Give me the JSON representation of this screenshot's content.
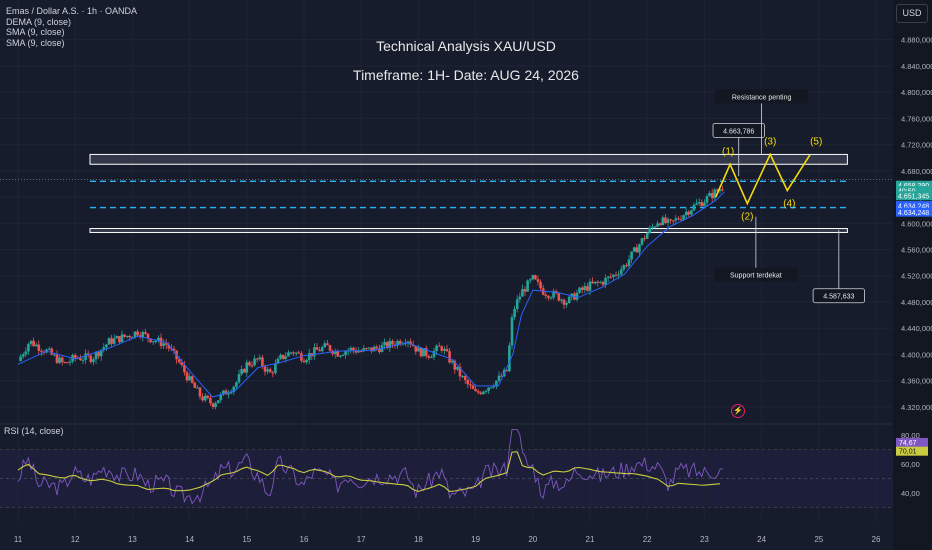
{
  "header": {
    "symbol_line": "Emas / Dollar A.S. · 1h · OANDA",
    "indicators": [
      "DEMA (9, close)",
      "SMA (9, close)",
      "SMA (9, close)"
    ]
  },
  "titles": {
    "line1": "Technical Analysis XAU/USD",
    "line2": "Timeframe: 1H- Date: AUG 24, 2026"
  },
  "unit_label": "USD",
  "rsi_label": "RSI (14, close)",
  "colors": {
    "background": "#161c2c",
    "up_candle": "#26a69a",
    "down_candle": "#ef5350",
    "ma_line": "#2962ff",
    "rsi_line": "#7e57c2",
    "rsi_ma": "#c9cc3f",
    "wave": "#f5d90a",
    "dashed_level": "#29b6f6"
  },
  "chart_data": {
    "type": "candlestick",
    "price_axis": {
      "ticks": [
        "4.880,000",
        "4.840,000",
        "4.800,000",
        "4.760,000",
        "4.720,000",
        "4.680,000",
        "4.640,000",
        "4.600,000",
        "4.560,000",
        "4.520,000",
        "4.480,000",
        "4.440,000",
        "4.400,000",
        "4.360,000",
        "4.320,000"
      ],
      "range": [
        4300,
        4910
      ]
    },
    "time_axis": {
      "ticks": [
        "11",
        "12",
        "13",
        "14",
        "15",
        "16",
        "17",
        "18",
        "19",
        "20",
        "21",
        "22",
        "23",
        "24",
        "25",
        "26"
      ]
    },
    "price_path": [
      [
        11,
        4390
      ],
      [
        11.2,
        4420
      ],
      [
        11.5,
        4405
      ],
      [
        11.8,
        4385
      ],
      [
        12.0,
        4395
      ],
      [
        12.3,
        4395
      ],
      [
        12.6,
        4420
      ],
      [
        12.9,
        4428
      ],
      [
        13.1,
        4435
      ],
      [
        13.3,
        4425
      ],
      [
        13.6,
        4415
      ],
      [
        13.8,
        4390
      ],
      [
        14.0,
        4360
      ],
      [
        14.2,
        4335
      ],
      [
        14.4,
        4325
      ],
      [
        14.6,
        4340
      ],
      [
        14.8,
        4355
      ],
      [
        15.0,
        4385
      ],
      [
        15.2,
        4392
      ],
      [
        15.4,
        4370
      ],
      [
        15.6,
        4395
      ],
      [
        15.8,
        4405
      ],
      [
        16.0,
        4395
      ],
      [
        16.2,
        4405
      ],
      [
        16.4,
        4412
      ],
      [
        16.6,
        4402
      ],
      [
        16.8,
        4408
      ],
      [
        17.0,
        4405
      ],
      [
        17.2,
        4408
      ],
      [
        17.4,
        4412
      ],
      [
        17.6,
        4418
      ],
      [
        17.8,
        4425
      ],
      [
        18.0,
        4405
      ],
      [
        18.2,
        4400
      ],
      [
        18.4,
        4412
      ],
      [
        18.6,
        4385
      ],
      [
        18.8,
        4360
      ],
      [
        19.0,
        4340
      ],
      [
        19.2,
        4350
      ],
      [
        19.4,
        4362
      ],
      [
        19.55,
        4375
      ],
      [
        19.65,
        4465
      ],
      [
        19.8,
        4495
      ],
      [
        20.0,
        4515
      ],
      [
        20.2,
        4495
      ],
      [
        20.4,
        4490
      ],
      [
        20.6,
        4480
      ],
      [
        20.8,
        4495
      ],
      [
        21.0,
        4505
      ],
      [
        21.2,
        4510
      ],
      [
        21.4,
        4520
      ],
      [
        21.6,
        4535
      ],
      [
        21.8,
        4560
      ],
      [
        22.0,
        4585
      ],
      [
        22.2,
        4605
      ],
      [
        22.4,
        4598
      ],
      [
        22.6,
        4612
      ],
      [
        22.8,
        4625
      ],
      [
        23.0,
        4635
      ],
      [
        23.2,
        4648
      ],
      [
        23.35,
        4658
      ]
    ],
    "ma_path": [
      [
        11,
        4385
      ],
      [
        11.5,
        4405
      ],
      [
        12.0,
        4393
      ],
      [
        12.6,
        4410
      ],
      [
        13.1,
        4428
      ],
      [
        13.6,
        4418
      ],
      [
        14.0,
        4375
      ],
      [
        14.4,
        4335
      ],
      [
        14.8,
        4345
      ],
      [
        15.2,
        4380
      ],
      [
        15.6,
        4388
      ],
      [
        16.0,
        4398
      ],
      [
        16.6,
        4405
      ],
      [
        17.2,
        4406
      ],
      [
        17.8,
        4418
      ],
      [
        18.2,
        4405
      ],
      [
        18.6,
        4392
      ],
      [
        19.0,
        4352
      ],
      [
        19.4,
        4352
      ],
      [
        19.65,
        4400
      ],
      [
        19.8,
        4460
      ],
      [
        20.0,
        4498
      ],
      [
        20.4,
        4495
      ],
      [
        20.8,
        4487
      ],
      [
        21.2,
        4502
      ],
      [
        21.6,
        4522
      ],
      [
        22.0,
        4565
      ],
      [
        22.4,
        4595
      ],
      [
        22.8,
        4612
      ],
      [
        23.2,
        4635
      ],
      [
        23.35,
        4648
      ]
    ],
    "levels": {
      "resistance_zone": [
        4690,
        4705
      ],
      "support_zone": [
        4586,
        4592
      ],
      "dashed_upper": 4664,
      "dashed_lower": 4624,
      "dotted_current": 4667
    },
    "price_labels": [
      {
        "text": "4.658,290",
        "price": 4658,
        "color": "#26a69a"
      },
      {
        "text": "40:50",
        "price": 4650,
        "color": "#26a69a"
      },
      {
        "text": "4.651,345",
        "price": 4642,
        "color": "#26a69a"
      },
      {
        "text": "4.634,248",
        "price": 4627,
        "color": "#2962ff"
      },
      {
        "text": "4.634,248",
        "price": 4617,
        "color": "#2962ff"
      }
    ],
    "callouts": [
      {
        "text": "4.663,786",
        "day": 23.6,
        "price": 4740
      },
      {
        "text": "Resistance penting",
        "day": 24.0,
        "price": 4792
      },
      {
        "text": "Support terdekat",
        "day": 23.9,
        "price": 4520
      },
      {
        "text": "4.587,633",
        "day": 25.35,
        "price": 4488
      }
    ],
    "wave": {
      "points": [
        [
          23.2,
          4640
        ],
        [
          23.45,
          4690
        ],
        [
          23.75,
          4630
        ],
        [
          24.15,
          4705
        ],
        [
          24.45,
          4650
        ],
        [
          24.85,
          4705
        ]
      ],
      "labels": [
        "(1)",
        "(2)",
        "(3)",
        "(4)",
        "(5)"
      ]
    },
    "rsi": {
      "ticks": [
        "80,00",
        "60,00",
        "40,00"
      ],
      "values": {
        "rsi": "74,67",
        "ma": "70,01"
      },
      "range": [
        20,
        85
      ],
      "bands": [
        70,
        50,
        30
      ]
    }
  }
}
